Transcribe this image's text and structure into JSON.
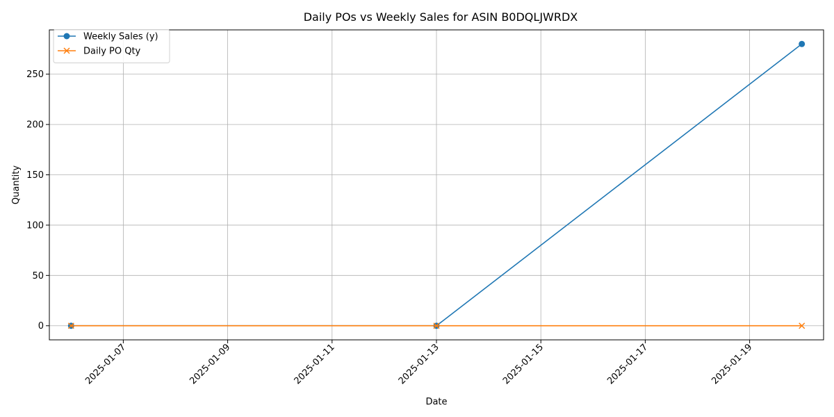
{
  "chart_data": {
    "type": "line",
    "title": "Daily POs vs Weekly Sales for ASIN B0DQLJWRDX",
    "xlabel": "Date",
    "ylabel": "Quantity",
    "x_type": "date",
    "xlim": [
      "2025-01-05T14:00",
      "2025-01-20T10:00"
    ],
    "ylim": [
      -14,
      294
    ],
    "x_ticks": [
      "2025-01-07",
      "2025-01-09",
      "2025-01-11",
      "2025-01-13",
      "2025-01-15",
      "2025-01-17",
      "2025-01-19"
    ],
    "y_ticks": [
      0,
      50,
      100,
      150,
      200,
      250
    ],
    "grid": true,
    "legend_position": "top-left",
    "series": [
      {
        "name": "Weekly Sales (y)",
        "color": "#1f77b4",
        "marker": "circle",
        "x": [
          "2025-01-06",
          "2025-01-13",
          "2025-01-20"
        ],
        "y": [
          0,
          0,
          280
        ]
      },
      {
        "name": "Daily PO Qty",
        "color": "#ff7f0e",
        "marker": "x",
        "x": [
          "2025-01-06",
          "2025-01-13",
          "2025-01-20"
        ],
        "y": [
          0,
          0,
          0
        ]
      }
    ]
  }
}
